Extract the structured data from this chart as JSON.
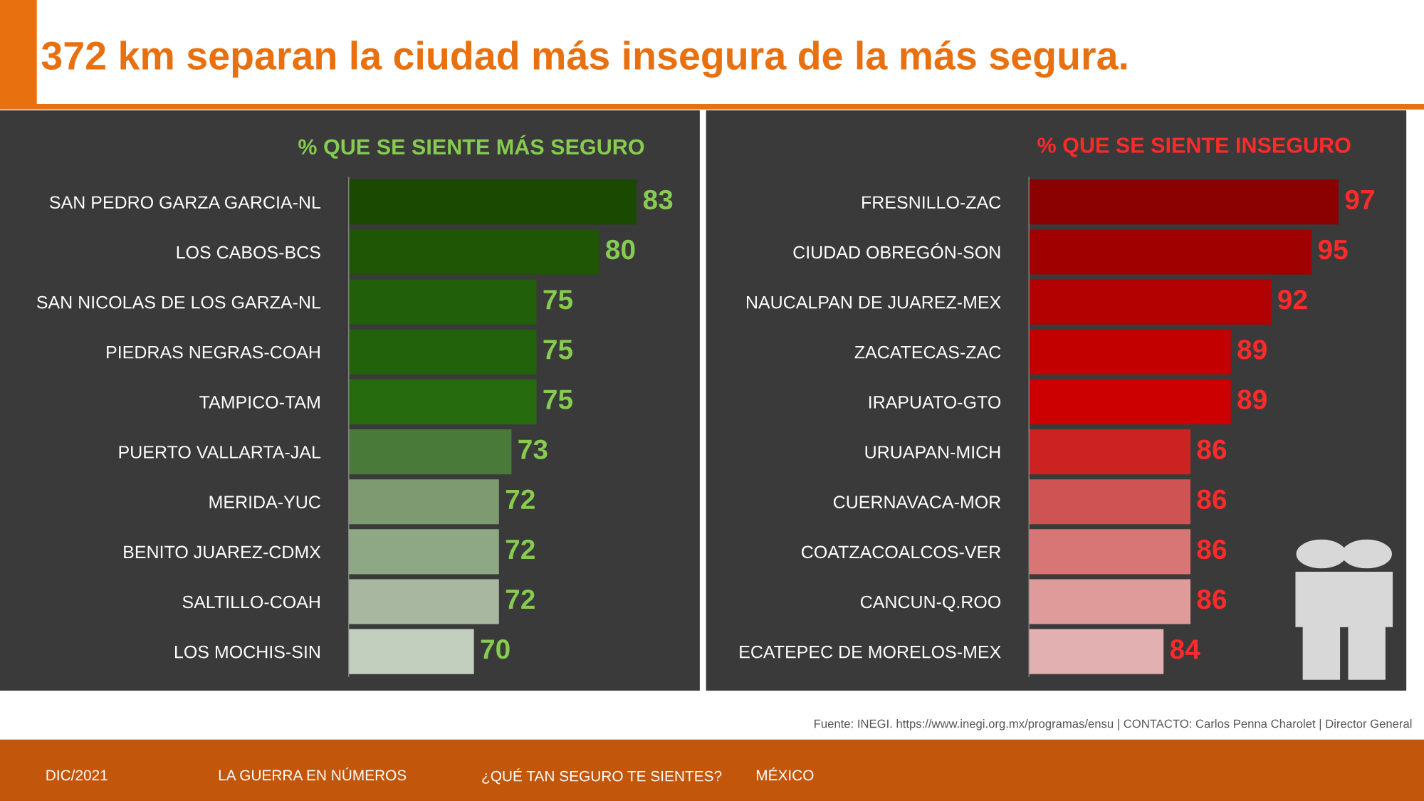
{
  "chart_data": [
    {
      "type": "bar",
      "orientation": "horizontal",
      "title": "% QUE SE SIENTE MÁS SEGURO",
      "categories": [
        "SAN PEDRO GARZA GARCIA-NL",
        "LOS CABOS-BCS",
        "SAN NICOLAS DE LOS GARZA-NL",
        "PIEDRAS NEGRAS-COAH",
        "TAMPICO-TAM",
        "PUERTO VALLARTA-JAL",
        "MERIDA-YUC",
        "BENITO JUAREZ-CDMX",
        "SALTILLO-COAH",
        "LOS MOCHIS-SIN"
      ],
      "values": [
        83,
        80,
        75,
        75,
        75,
        73,
        72,
        72,
        72,
        70
      ],
      "colors": [
        "#1a4a02",
        "#1f5606",
        "#215f0a",
        "#22620b",
        "#266c0e",
        "#4a7a3a",
        "#7d9a70",
        "#8ea886",
        "#a7b7a0",
        "#c2cfbf"
      ],
      "xlim": [
        60,
        88
      ],
      "data_labels": true,
      "tick_labels": "y",
      "annotations": [
        "372 km separan la ciudad más insegura de la más segura.",
        "Fuente: INEGI. https://www.inegi.org.mx/programas/ensu | CONTACTO: Carlos Penna Charolet | Director General",
        "DIC/2021",
        "LA GUERRA EN NÚMEROS",
        "¿QUÉ TAN SEGURO TE SIENTES?",
        "MÉXICO"
      ]
    },
    {
      "type": "bar",
      "orientation": "horizontal",
      "title": "% QUE SE SIENTE INSEGURO",
      "categories": [
        "FRESNILLO-ZAC",
        "CIUDAD OBREGÓN-SON",
        "NAUCALPAN DE JUAREZ-MEX",
        "ZACATECAS-ZAC",
        "IRAPUATO-GTO",
        "URUAPAN-MICH",
        "CUERNAVACA-MOR",
        "COATZACOALCOS-VER",
        "CANCUN-Q.ROO",
        "ECATEPEC DE MORELOS-MEX"
      ],
      "values": [
        97,
        95,
        92,
        89,
        89,
        86,
        86,
        86,
        86,
        84
      ],
      "colors": [
        "#8b0000",
        "#a00000",
        "#b30000",
        "#c30000",
        "#cc0000",
        "#cc2222",
        "#d05353",
        "#d87676",
        "#df9a9a",
        "#e2b0b0"
      ],
      "xlim": [
        74,
        102
      ],
      "data_labels": true,
      "tick_labels": "y"
    }
  ]
}
